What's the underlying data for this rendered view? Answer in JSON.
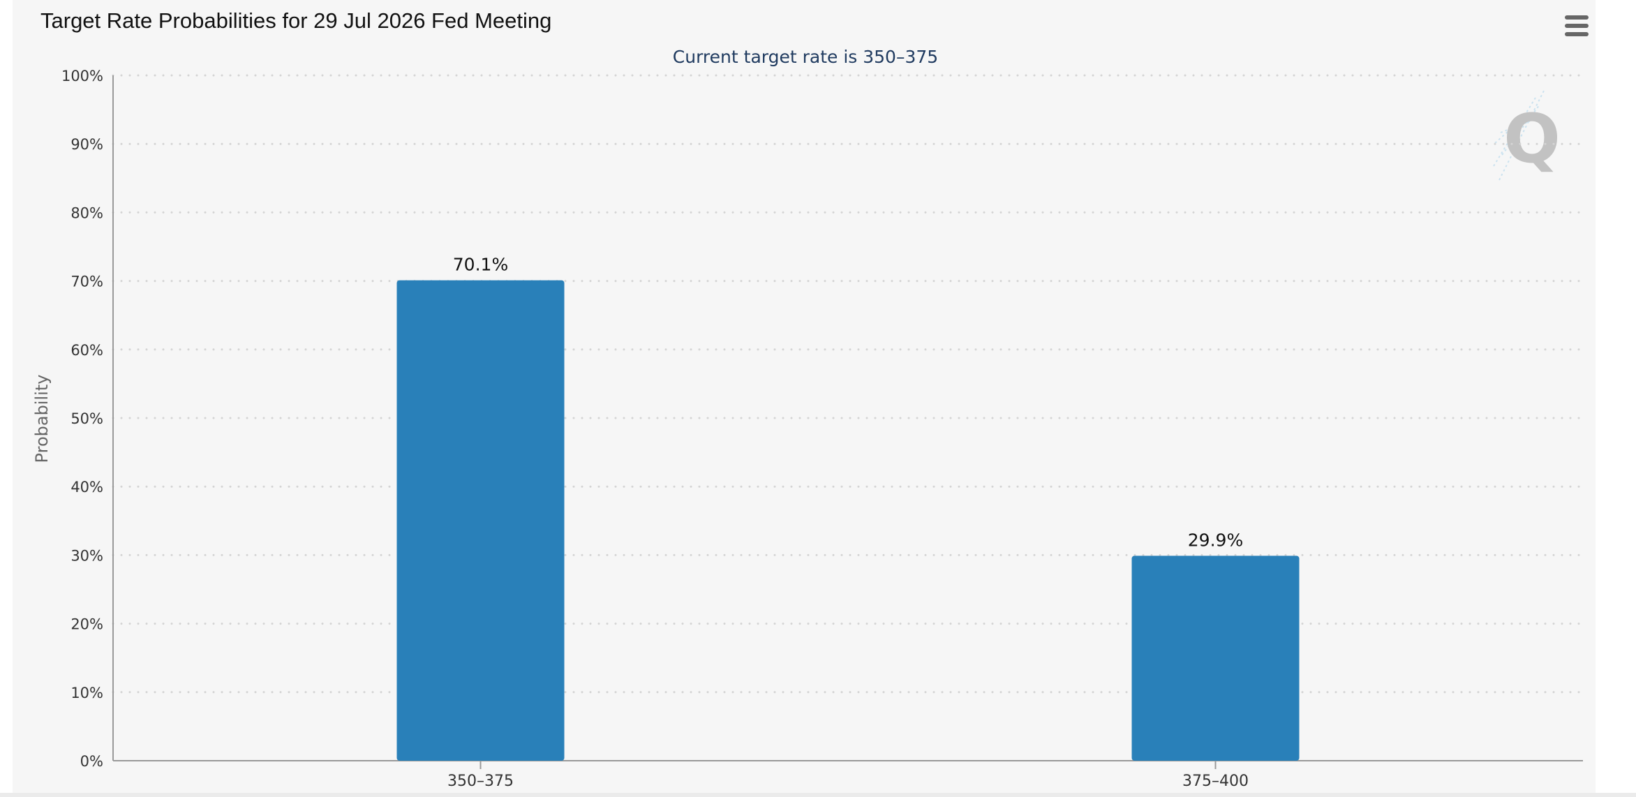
{
  "header": {
    "title": "Target Rate Probabilities for 29 Jul 2026 Fed Meeting",
    "menu_icon": "hamburger-menu-icon"
  },
  "watermark": {
    "letter": "Q",
    "icon": "quikstrike-logo-icon"
  },
  "colors": {
    "bar": "#2980b9",
    "subtitle": "#1f3a5f",
    "grid": "#d4d4d4",
    "background": "#f6f6f6",
    "axis": "#999999"
  },
  "chart_data": {
    "type": "bar",
    "title": "Target Rate Probabilities for 29 Jul 2026 Fed Meeting",
    "subtitle": "Current target rate is 350–375",
    "xlabel": "",
    "ylabel": "Probability",
    "categories": [
      "350–375",
      "375–400"
    ],
    "values": [
      70.1,
      29.9
    ],
    "data_labels": [
      "70.1%",
      "29.9%"
    ],
    "ylim": [
      0,
      100
    ],
    "yticks": [
      0,
      10,
      20,
      30,
      40,
      50,
      60,
      70,
      80,
      90,
      100
    ],
    "ytick_labels": [
      "0%",
      "10%",
      "20%",
      "30%",
      "40%",
      "50%",
      "60%",
      "70%",
      "80%",
      "90%",
      "100%"
    ],
    "grid": true,
    "grid_style": "dotted",
    "legend": false
  }
}
